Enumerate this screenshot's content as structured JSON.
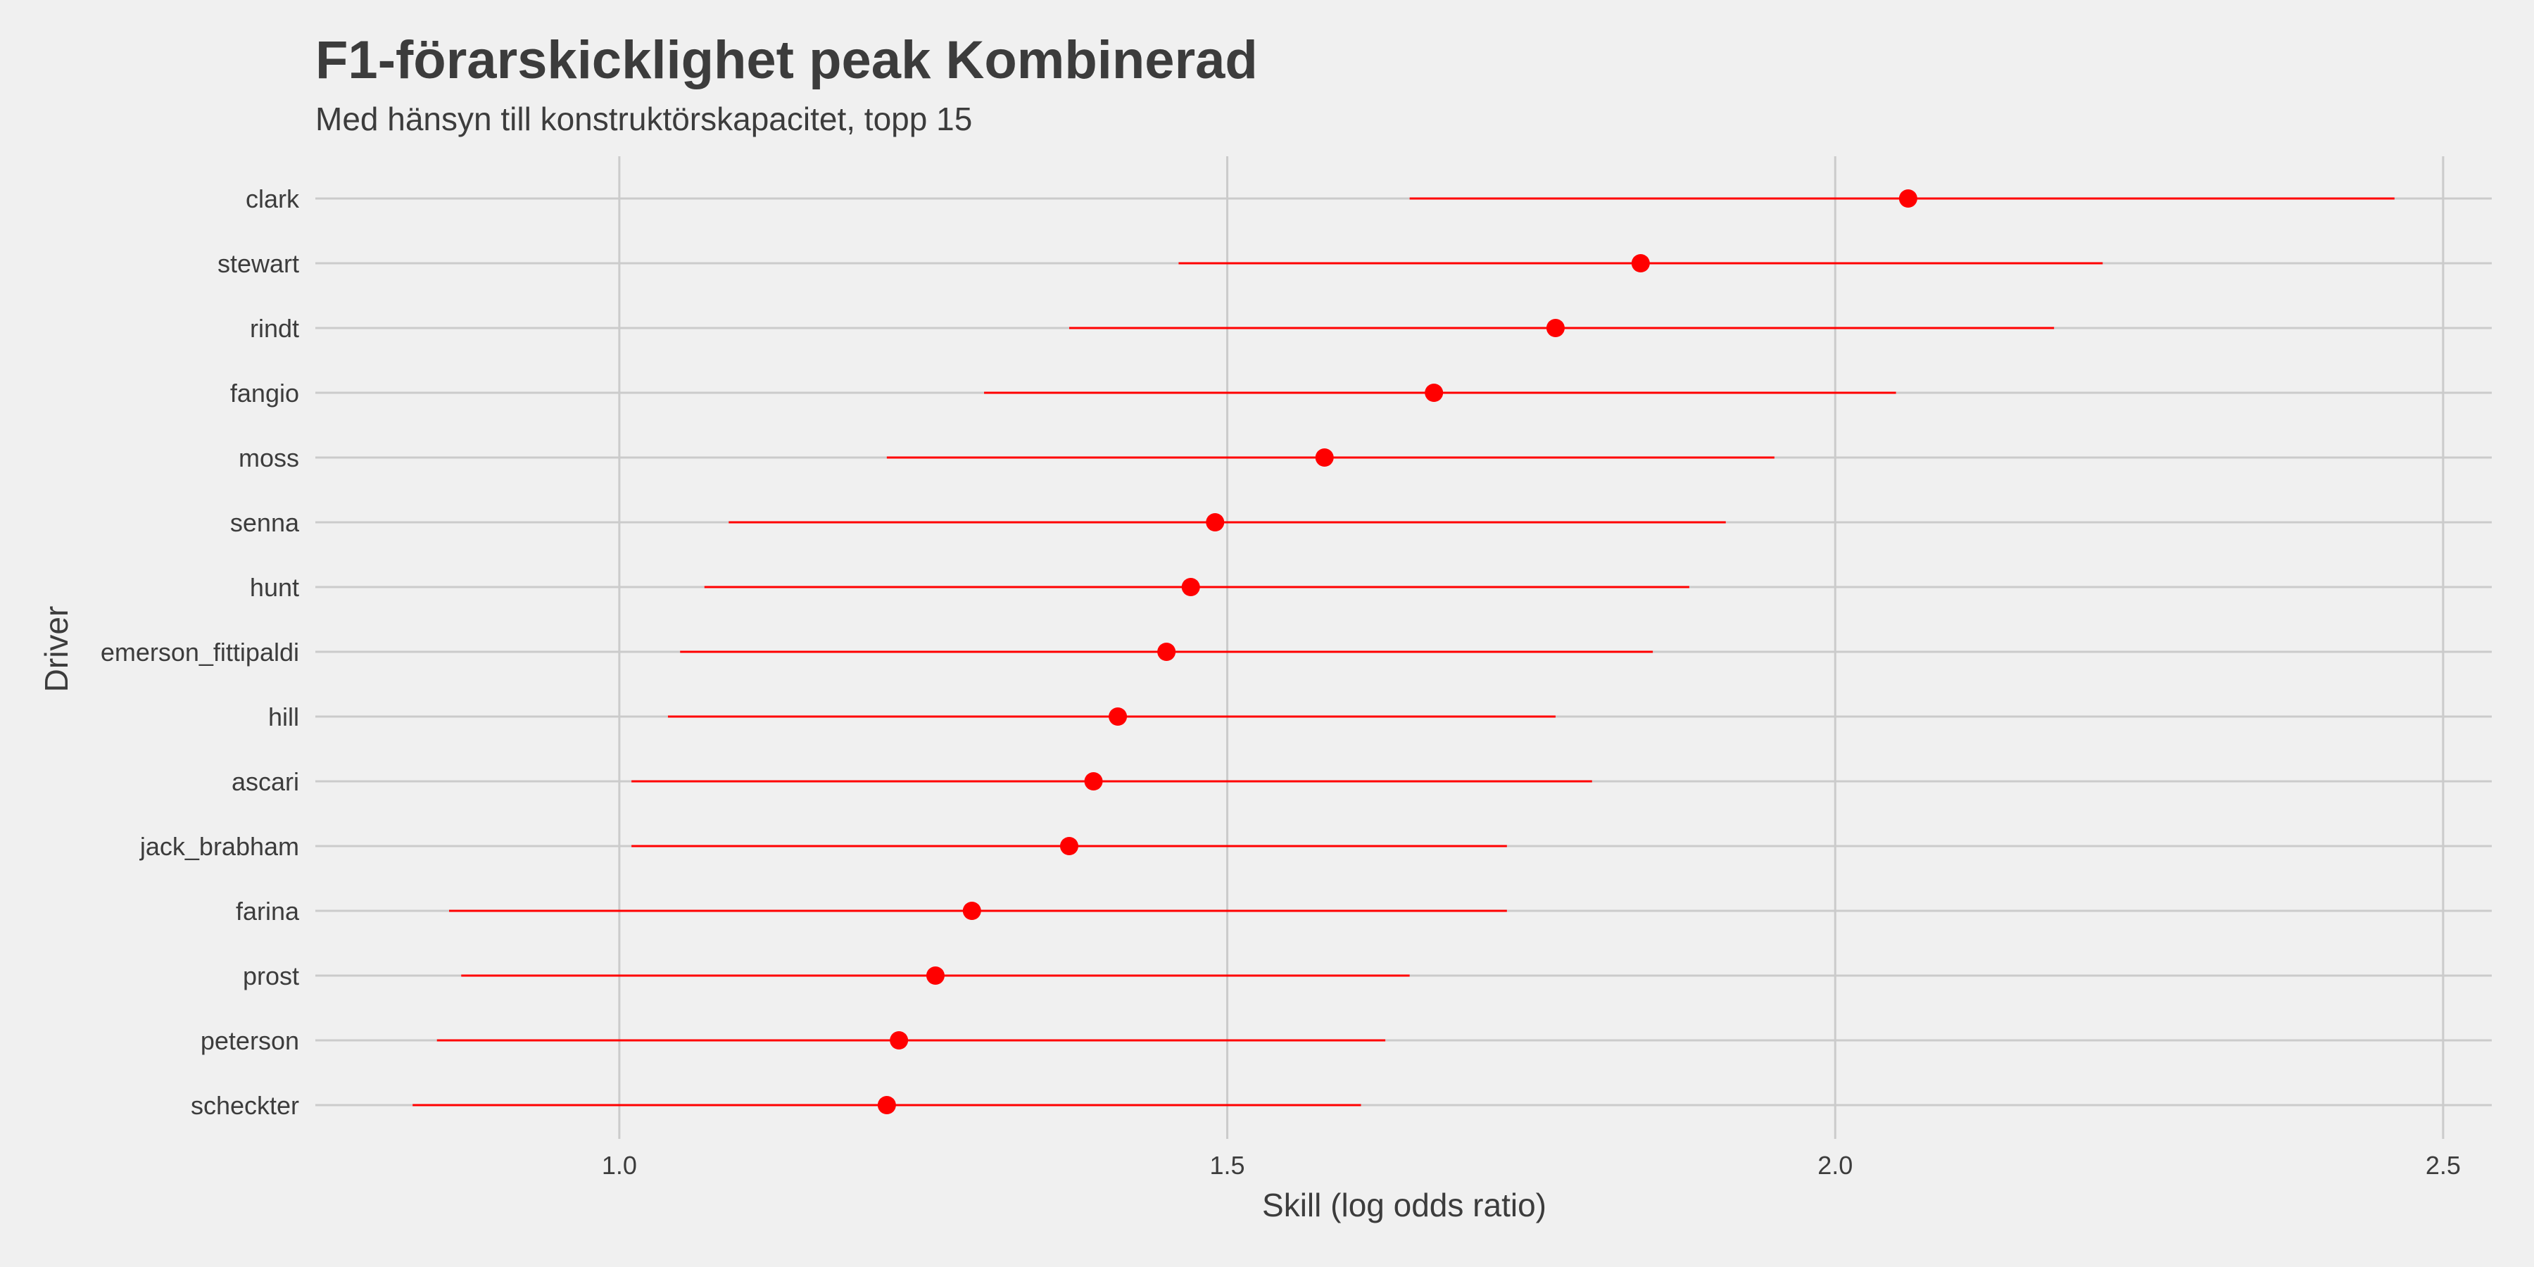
{
  "chart_data": {
    "type": "dot-interval",
    "title": "F1-förarskicklighet peak Kombinerad",
    "subtitle": "Med hänsyn till konstruktörskapacitet, topp 15",
    "xlabel": "Skill (log odds ratio)",
    "ylabel": "Driver",
    "xlim": [
      0.75,
      2.54
    ],
    "xticks": [
      1.0,
      1.5,
      2.0,
      2.5
    ],
    "xtick_labels": [
      "1.0",
      "1.5",
      "2.0",
      "2.5"
    ],
    "grid": true,
    "color": "#ff0000",
    "drivers": [
      {
        "name": "clark",
        "value": 2.06,
        "low": 1.65,
        "high": 2.46
      },
      {
        "name": "stewart",
        "value": 1.84,
        "low": 1.46,
        "high": 2.22
      },
      {
        "name": "rindt",
        "value": 1.77,
        "low": 1.37,
        "high": 2.18
      },
      {
        "name": "fangio",
        "value": 1.67,
        "low": 1.3,
        "high": 2.05
      },
      {
        "name": "moss",
        "value": 1.58,
        "low": 1.22,
        "high": 1.95
      },
      {
        "name": "senna",
        "value": 1.49,
        "low": 1.09,
        "high": 1.91
      },
      {
        "name": "hunt",
        "value": 1.47,
        "low": 1.07,
        "high": 1.88
      },
      {
        "name": "emerson_fittipaldi",
        "value": 1.45,
        "low": 1.05,
        "high": 1.85
      },
      {
        "name": "hill",
        "value": 1.41,
        "low": 1.04,
        "high": 1.77
      },
      {
        "name": "ascari",
        "value": 1.39,
        "low": 1.01,
        "high": 1.8
      },
      {
        "name": "jack_brabham",
        "value": 1.37,
        "low": 1.01,
        "high": 1.73
      },
      {
        "name": "farina",
        "value": 1.29,
        "low": 0.86,
        "high": 1.73
      },
      {
        "name": "prost",
        "value": 1.26,
        "low": 0.87,
        "high": 1.65
      },
      {
        "name": "peterson",
        "value": 1.23,
        "low": 0.85,
        "high": 1.63
      },
      {
        "name": "scheckter",
        "value": 1.22,
        "low": 0.83,
        "high": 1.61
      }
    ]
  }
}
